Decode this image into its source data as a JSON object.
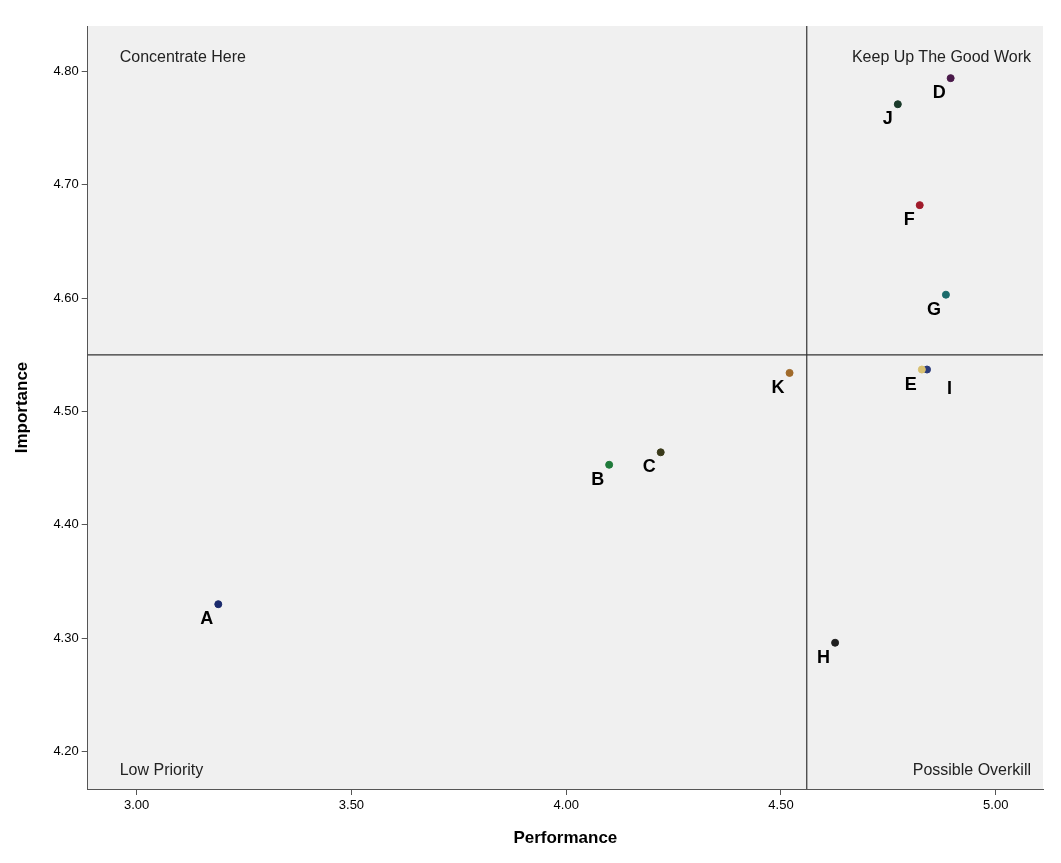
{
  "chart_data": {
    "type": "scatter",
    "xlabel": "Performance",
    "ylabel": "Importance",
    "marker": "circle",
    "xlim": [
      2.886,
      5.11
    ],
    "ylim": [
      4.167,
      4.84
    ],
    "xticks": [
      {
        "value": 3,
        "label": "3.00"
      },
      {
        "value": 3.5,
        "label": "3.50"
      },
      {
        "value": 4,
        "label": "4.00"
      },
      {
        "value": 4.5,
        "label": "4.50"
      },
      {
        "value": 5,
        "label": "5.00"
      }
    ],
    "yticks": [
      {
        "value": 4.2,
        "label": "4.20"
      },
      {
        "value": 4.3,
        "label": "4.30"
      },
      {
        "value": 4.4,
        "label": "4.40"
      },
      {
        "value": 4.5,
        "label": "4.50"
      },
      {
        "value": 4.6,
        "label": "4.60"
      },
      {
        "value": 4.7,
        "label": "4.70"
      },
      {
        "value": 4.8,
        "label": "4.80"
      }
    ],
    "ref_lines": [
      {
        "axis": "x",
        "value": 4.56,
        "color": "#333333"
      },
      {
        "axis": "y",
        "value": 4.55,
        "color": "#333333"
      }
    ],
    "annotations": [
      "Concentrate Here",
      "Keep Up The Good Work",
      "Low Priority",
      "Possible Overkill"
    ],
    "series": [
      {
        "name": "A",
        "color": "#1a2a6c",
        "x": [
          3.19
        ],
        "values": [
          4.33
        ]
      },
      {
        "name": "B",
        "color": "#1f7a3a",
        "x": [
          4.1
        ],
        "values": [
          4.453
        ]
      },
      {
        "name": "C",
        "color": "#3a3a1a",
        "x": [
          4.22
        ],
        "values": [
          4.464
        ]
      },
      {
        "name": "D",
        "color": "#4a1a4a",
        "x": [
          4.895
        ],
        "values": [
          4.794
        ]
      },
      {
        "name": "E",
        "color": "#d8c070",
        "x": [
          4.828
        ],
        "values": [
          4.537
        ]
      },
      {
        "name": "F",
        "color": "#a01a2a",
        "x": [
          4.823
        ],
        "values": [
          4.682
        ]
      },
      {
        "name": "G",
        "color": "#1a6a6a",
        "x": [
          4.884
        ],
        "values": [
          4.603
        ]
      },
      {
        "name": "H",
        "color": "#202020",
        "x": [
          4.626
        ],
        "values": [
          4.296
        ]
      },
      {
        "name": "I",
        "color": "#2a3a7a",
        "x": [
          4.84
        ],
        "values": [
          4.537
        ]
      },
      {
        "name": "J",
        "color": "#1a3a2a",
        "x": [
          4.772
        ],
        "values": [
          4.771
        ]
      },
      {
        "name": "K",
        "color": "#a06a2a",
        "x": [
          4.52
        ],
        "values": [
          4.534
        ]
      }
    ]
  }
}
